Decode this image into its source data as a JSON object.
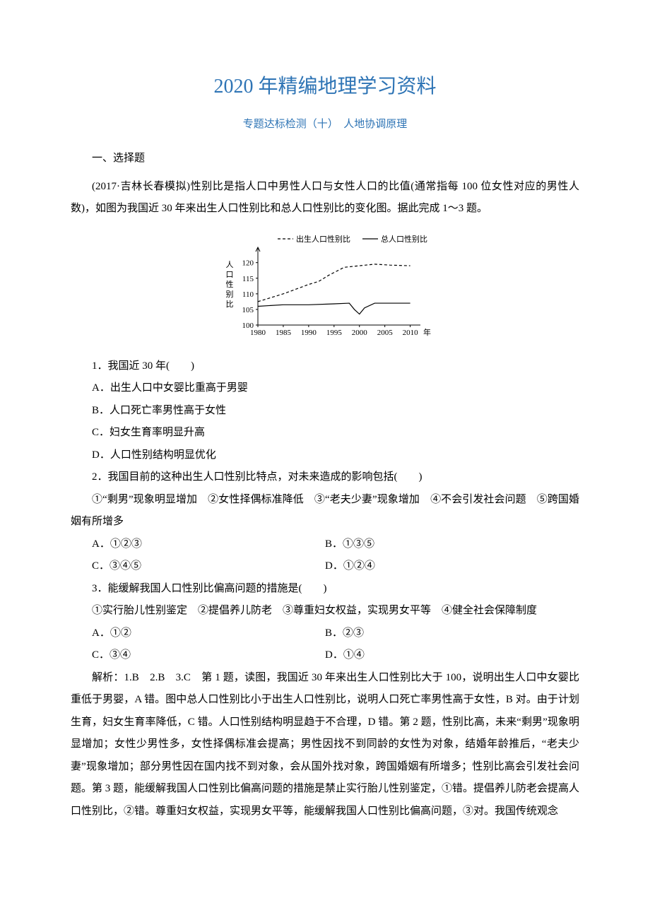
{
  "title_main": "2020 年精编地理学习资料",
  "title_sub": "专题达标检测（十）　人地协调原理",
  "section_label": "一、选择题",
  "context_para": "(2017·吉林长春模拟)性别比是指人口中男性人口与女性人口的比值(通常指每 100 位女性对应的男性人数)，如图为我国近 30 年来出生人口性别比和总人口性别比的变化图。据此完成 1～3 题。",
  "chart": {
    "type": "line",
    "legend_items": [
      "出生人口性别比",
      "总人口性别比"
    ],
    "legend_styles": [
      "dashed",
      "solid"
    ],
    "x_ticks": [
      "1980",
      "1985",
      "1990",
      "1995",
      "2000",
      "2005",
      "2010"
    ],
    "x_label": "年",
    "y_label": "人口性别比",
    "y_ticks": [
      100,
      105,
      110,
      115,
      120
    ],
    "ylim": [
      100,
      124
    ],
    "series": [
      {
        "name": "出生人口性别比",
        "style": "dashed",
        "color": "#000000",
        "points": [
          [
            1980,
            107.5
          ],
          [
            1985,
            110
          ],
          [
            1990,
            113
          ],
          [
            1992,
            114
          ],
          [
            1994,
            116
          ],
          [
            1997,
            118.5
          ],
          [
            2000,
            119
          ],
          [
            2003,
            119.5
          ],
          [
            2006,
            119.2
          ],
          [
            2010,
            119
          ]
        ]
      },
      {
        "name": "总人口性别比",
        "style": "solid",
        "color": "#000000",
        "points": [
          [
            1980,
            106
          ],
          [
            1985,
            106.5
          ],
          [
            1990,
            106.5
          ],
          [
            1995,
            106.8
          ],
          [
            1998,
            107
          ],
          [
            1999,
            105
          ],
          [
            2000,
            103.5
          ],
          [
            2001,
            105.5
          ],
          [
            2003,
            107
          ],
          [
            2006,
            107
          ],
          [
            2010,
            107
          ]
        ]
      }
    ],
    "background_color": "#ffffff",
    "axis_color": "#000000",
    "text_color": "#000000",
    "font_size": 11
  },
  "q1": {
    "stem": "1．我国近 30 年(　　)",
    "options": [
      "A．出生人口中女婴比重高于男婴",
      "B．人口死亡率男性高于女性",
      "C．妇女生育率明显升高",
      "D．人口性别结构明显优化"
    ]
  },
  "q2": {
    "stem": "2．我国目前的这种出生人口性别比特点，对未来造成的影响包括(　　)",
    "items_para": "①“剩男”现象明显增加　②女性择偶标准降低　③“老夫少妻”现象增加　④不会引发社会问题　⑤跨国婚姻有所增多",
    "options_left": [
      "A．①②③",
      "C．③④⑤"
    ],
    "options_right": [
      "B．①③⑤",
      "D．①②④"
    ]
  },
  "q3": {
    "stem": "3．能缓解我国人口性别比偏高问题的措施是(　　)",
    "items_para": "①实行胎儿性别鉴定　②提倡养儿防老　③尊重妇女权益，实现男女平等　④健全社会保障制度",
    "options_left": [
      "A．①②",
      "C．③④"
    ],
    "options_right": [
      "B．②③",
      "D．①④"
    ]
  },
  "analysis": "解析：1.B　2.B　3.C　第 1 题，读图，我国近 30 年来出生人口性别比大于 100，说明出生人口中女婴比重低于男婴，A 错。图中总人口性别比小于出生人口性别比，说明人口死亡率男性高于女性，B 对。由于计划生育，妇女生育率降低，C 错。人口性别结构明显趋于不合理，D 错。第 2 题，性别比高，未来“剩男”现象明显增加；女性少男性多，女性择偶标准会提高；男性因找不到同龄的女性为对象，结婚年龄推后，“老夫少妻”现象增加；部分男性因在国内找不到对象，会从国外找对象，跨国婚姻有所增多；性别比高会引发社会问题。第 3 题，能缓解我国人口性别比偏高问题的措施是禁止实行胎儿性别鉴定，①错。提倡养儿防老会提高人口性别比，②错。尊重妇女权益，实现男女平等，能缓解我国人口性别比偏高问题，③对。我国传统观念"
}
